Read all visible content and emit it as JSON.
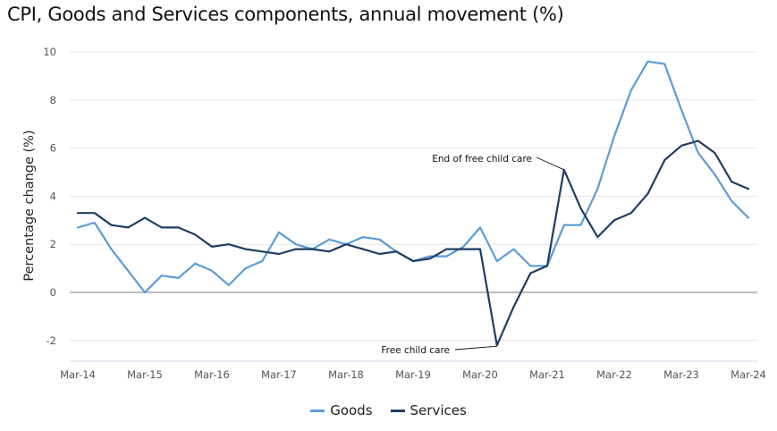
{
  "chart_data": {
    "type": "line",
    "title": "CPI, Goods and Services components, annual movement (%)",
    "xlabel": "",
    "ylabel": "Percentage change (%)",
    "ylim": [
      -2.9,
      10
    ],
    "yticks": [
      -2,
      0,
      2,
      4,
      6,
      8,
      10
    ],
    "xtick_labels": [
      "Mar-14",
      "Mar-15",
      "Mar-16",
      "Mar-17",
      "Mar-18",
      "Mar-19",
      "Mar-20",
      "Mar-21",
      "Mar-22",
      "Mar-23",
      "Mar-24"
    ],
    "x": [
      "Mar-14",
      "Jun-14",
      "Sep-14",
      "Dec-14",
      "Mar-15",
      "Jun-15",
      "Sep-15",
      "Dec-15",
      "Mar-16",
      "Jun-16",
      "Sep-16",
      "Dec-16",
      "Mar-17",
      "Jun-17",
      "Sep-17",
      "Dec-17",
      "Mar-18",
      "Jun-18",
      "Sep-18",
      "Dec-18",
      "Mar-19",
      "Jun-19",
      "Sep-19",
      "Dec-19",
      "Mar-20",
      "Jun-20",
      "Sep-20",
      "Dec-20",
      "Mar-21",
      "Jun-21",
      "Sep-21",
      "Dec-21",
      "Mar-22",
      "Jun-22",
      "Sep-22",
      "Dec-22",
      "Mar-23",
      "Jun-23",
      "Sep-23",
      "Dec-23",
      "Mar-24"
    ],
    "series": [
      {
        "name": "Goods",
        "color": "#5b9bd5",
        "values": [
          2.7,
          2.9,
          1.8,
          0.9,
          0.0,
          0.7,
          0.6,
          1.2,
          0.9,
          0.3,
          1.0,
          1.3,
          2.5,
          2.0,
          1.8,
          2.2,
          2.0,
          2.3,
          2.2,
          1.7,
          1.3,
          1.5,
          1.5,
          1.9,
          2.7,
          1.3,
          1.8,
          1.1,
          1.1,
          2.8,
          2.8,
          4.3,
          6.5,
          8.4,
          9.6,
          9.5,
          7.6,
          5.8,
          4.9,
          3.8,
          3.1
        ]
      },
      {
        "name": "Services",
        "color": "#1f3d63",
        "values": [
          3.3,
          3.3,
          2.8,
          2.7,
          3.1,
          2.7,
          2.7,
          2.4,
          1.9,
          2.0,
          1.8,
          1.7,
          1.6,
          1.8,
          1.8,
          1.7,
          2.0,
          1.8,
          1.6,
          1.7,
          1.3,
          1.4,
          1.8,
          1.8,
          1.8,
          -2.2,
          -0.6,
          0.8,
          1.1,
          5.1,
          3.5,
          2.3,
          3.0,
          3.3,
          4.1,
          5.5,
          6.1,
          6.3,
          5.8,
          4.6,
          4.3
        ]
      }
    ],
    "annotations": [
      {
        "text": "End of free child care",
        "x": "Jun-21",
        "y": 5.1
      },
      {
        "text": "Free child care",
        "x": "Jun-20",
        "y": -2.2
      }
    ],
    "grid": true,
    "legend_position": "bottom-center"
  }
}
